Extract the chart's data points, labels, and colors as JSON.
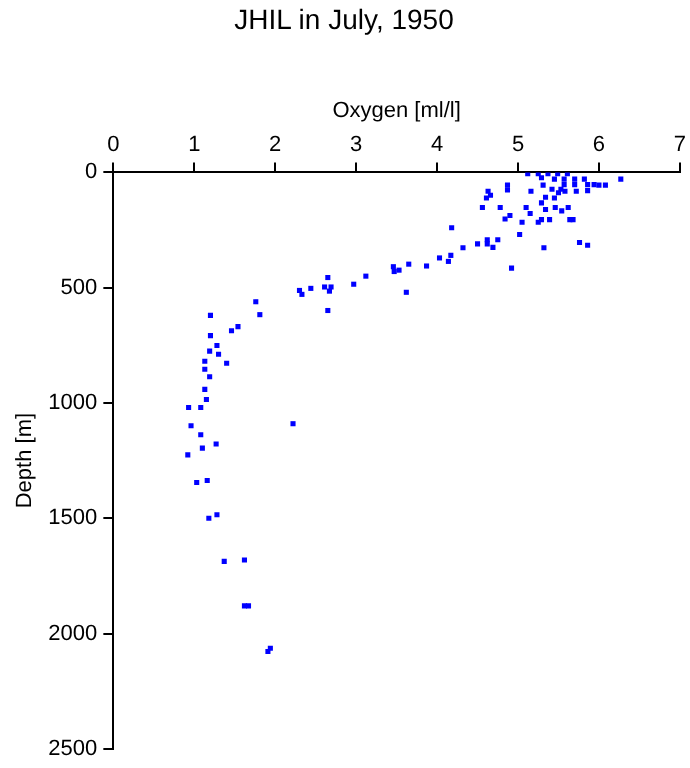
{
  "chart_data": {
    "type": "scatter",
    "title": "JHIL in July, 1950",
    "xlabel": "Oxygen [ml/l]",
    "ylabel": "Depth [m]",
    "xlim": [
      0,
      7
    ],
    "xticks": [
      0,
      1,
      2,
      3,
      4,
      5,
      6,
      7
    ],
    "ylim": [
      2500,
      0
    ],
    "yticks": [
      0,
      500,
      1000,
      1500,
      2000,
      2500
    ],
    "grid": false,
    "legend": false,
    "marker": "square",
    "series": [
      {
        "color": "#0000ff",
        "x": [
          5.12,
          5.25,
          5.37,
          5.49,
          5.61,
          5.29,
          5.45,
          5.57,
          5.7,
          5.82,
          6.27,
          5.57,
          5.7,
          5.86,
          5.94,
          4.87,
          5.31,
          6.0,
          6.08,
          4.87,
          5.42,
          5.53,
          5.5,
          5.16,
          5.58,
          5.72,
          5.86,
          4.63,
          4.66,
          4.61,
          5.34,
          5.45,
          5.29,
          5.1,
          4.56,
          4.78,
          5.46,
          5.62,
          5.34,
          5.54,
          5.15,
          4.9,
          4.84,
          5.29,
          5.39,
          5.64,
          5.68,
          5.05,
          5.25,
          4.18,
          5.02,
          4.62,
          4.75,
          4.5,
          4.62,
          5.76,
          5.86,
          4.69,
          4.32,
          5.32,
          4.17,
          4.14,
          4.03,
          3.65,
          3.87,
          4.92,
          3.53,
          3.46,
          3.47,
          3.12,
          2.97,
          2.65,
          2.61,
          2.69,
          2.44,
          2.3,
          2.67,
          2.33,
          3.62,
          1.76,
          2.65,
          1.81,
          1.2,
          1.54,
          1.46,
          1.2,
          1.28,
          1.19,
          1.3,
          1.13,
          1.4,
          1.13,
          1.19,
          1.13,
          1.15,
          0.93,
          1.08,
          2.22,
          0.96,
          1.08,
          1.27,
          1.1,
          0.92,
          1.16,
          1.03,
          1.28,
          1.18,
          1.62,
          1.37,
          1.62,
          1.67,
          1.94,
          1.91
        ],
        "values": [
          6,
          6,
          6,
          6,
          6,
          23,
          29,
          29,
          29,
          29,
          29,
          53,
          53,
          53,
          53,
          55,
          55,
          55,
          55,
          76,
          73,
          73,
          88,
          82,
          82,
          82,
          79,
          82,
          99,
          111,
          108,
          111,
          132,
          152,
          152,
          152,
          152,
          152,
          161,
          167,
          178,
          187,
          202,
          205,
          205,
          205,
          205,
          216,
          216,
          240,
          269,
          292,
          292,
          310,
          310,
          304,
          316,
          325,
          327,
          327,
          360,
          386,
          371,
          398,
          406,
          415,
          424,
          409,
          430,
          450,
          485,
          456,
          497,
          497,
          503,
          512,
          515,
          529,
          520,
          561,
          599,
          617,
          620,
          669,
          687,
          708,
          751,
          775,
          789,
          819,
          828,
          854,
          886,
          941,
          985,
          1020,
          1020,
          1090,
          1099,
          1138,
          1178,
          1196,
          1225,
          1336,
          1345,
          1485,
          1500,
          1681,
          1687,
          1880,
          1880,
          2064,
          2078
        ]
      }
    ]
  }
}
